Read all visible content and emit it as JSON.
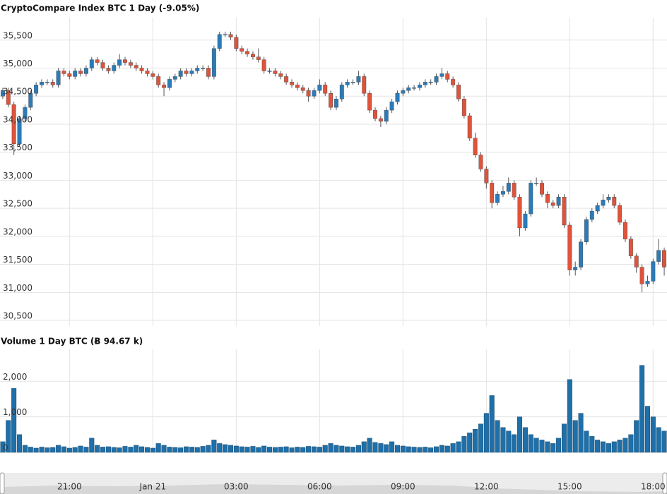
{
  "chart_data": [
    {
      "type": "candlestick",
      "title": "CryptoCompare Index BTC 1 Day (-9.05%)",
      "up_color": "#2b7bb9",
      "down_color": "#e0533b",
      "grid": true,
      "xlim": [
        -0.5,
        119.5
      ],
      "xticks": [
        {
          "value": 12,
          "label": "21:00"
        },
        {
          "value": 27,
          "label": "Jan 21"
        },
        {
          "value": 42,
          "label": "03:00"
        },
        {
          "value": 57,
          "label": "06:00"
        },
        {
          "value": 72,
          "label": "09:00"
        },
        {
          "value": 87,
          "label": "12:00"
        },
        {
          "value": 102,
          "label": "15:00"
        },
        {
          "value": 117,
          "label": "18:00"
        }
      ],
      "ylim": [
        30400,
        35900
      ],
      "yticks": [
        {
          "value": 30500,
          "label": "30,500"
        },
        {
          "value": 31000,
          "label": "31,000"
        },
        {
          "value": 31500,
          "label": "31,500"
        },
        {
          "value": 32000,
          "label": "32,000"
        },
        {
          "value": 32500,
          "label": "32,500"
        },
        {
          "value": 33000,
          "label": "33,000"
        },
        {
          "value": 33500,
          "label": "33,500"
        },
        {
          "value": 34000,
          "label": "34,000"
        },
        {
          "value": 34500,
          "label": "34,500"
        },
        {
          "value": 35000,
          "label": "35,000"
        },
        {
          "value": 35500,
          "label": "35,500"
        }
      ],
      "open": [
        34500,
        34600,
        34350,
        33650,
        34100,
        34300,
        34550,
        34700,
        34750,
        34750,
        34700,
        34950,
        34900,
        34850,
        34950,
        34900,
        35000,
        35150,
        35100,
        35000,
        34950,
        35050,
        35150,
        35100,
        35050,
        35000,
        34950,
        34900,
        34850,
        34700,
        34650,
        34800,
        34850,
        34950,
        34900,
        34950,
        35000,
        35000,
        34850,
        35350,
        35600,
        35600,
        35550,
        35350,
        35300,
        35250,
        35200,
        35150,
        34950,
        34950,
        34900,
        34850,
        34750,
        34700,
        34650,
        34600,
        34500,
        34600,
        34700,
        34550,
        34300,
        34450,
        34700,
        34750,
        34750,
        34850,
        34550,
        34250,
        34100,
        34050,
        34250,
        34400,
        34550,
        34600,
        34650,
        34650,
        34700,
        34750,
        34750,
        34850,
        34900,
        34800,
        34700,
        34450,
        34150,
        33750,
        33450,
        33200,
        32950,
        32600,
        32750,
        32800,
        32950,
        32700,
        32150,
        32400,
        32950,
        32950,
        32750,
        32600,
        32550,
        32700,
        32200,
        31400,
        31450,
        31900,
        32300,
        32450,
        32550,
        32650,
        32700,
        32550,
        32250,
        31950,
        31650,
        31450,
        31150,
        31200,
        31550,
        31750
      ],
      "high": [
        34650,
        34650,
        34400,
        34150,
        34350,
        34600,
        34750,
        34800,
        34800,
        34800,
        35000,
        35000,
        34950,
        35000,
        35000,
        35050,
        35200,
        35200,
        35150,
        35050,
        35100,
        35250,
        35200,
        35150,
        35100,
        35050,
        35000,
        34950,
        34900,
        34750,
        34850,
        34900,
        35000,
        35000,
        35000,
        35050,
        35050,
        35050,
        35400,
        35650,
        35650,
        35650,
        35600,
        35400,
        35350,
        35300,
        35350,
        35200,
        35000,
        35000,
        34950,
        34900,
        34800,
        34750,
        34700,
        34650,
        34650,
        34800,
        34750,
        34600,
        34500,
        34750,
        34800,
        34800,
        34950,
        34900,
        34600,
        34300,
        34150,
        34300,
        34450,
        34600,
        34650,
        34700,
        34700,
        34750,
        34800,
        34800,
        34900,
        35000,
        34950,
        34850,
        34750,
        34500,
        34200,
        33850,
        33500,
        33250,
        33000,
        32800,
        32900,
        33050,
        33000,
        32750,
        32450,
        33000,
        33050,
        33000,
        32800,
        32650,
        32750,
        32750,
        32250,
        31550,
        31950,
        32350,
        32500,
        32600,
        32750,
        32750,
        32750,
        32600,
        32300,
        32000,
        31700,
        31500,
        31300,
        31600,
        31950,
        31800
      ],
      "low": [
        34450,
        34300,
        33450,
        33600,
        34050,
        34250,
        34500,
        34650,
        34700,
        34650,
        34650,
        34850,
        34800,
        34800,
        34850,
        34850,
        34950,
        35050,
        34950,
        34900,
        34900,
        35000,
        35050,
        35000,
        34950,
        34900,
        34850,
        34800,
        34650,
        34500,
        34600,
        34750,
        34800,
        34850,
        34850,
        34900,
        34950,
        34800,
        34800,
        35300,
        35550,
        35500,
        35300,
        35250,
        35200,
        35150,
        35100,
        34900,
        34900,
        34850,
        34800,
        34700,
        34650,
        34600,
        34550,
        34400,
        34450,
        34550,
        34500,
        34250,
        34250,
        34400,
        34650,
        34700,
        34700,
        34500,
        34200,
        34050,
        33950,
        34000,
        34200,
        34350,
        34500,
        34550,
        34600,
        34600,
        34650,
        34700,
        34700,
        34800,
        34750,
        34650,
        34400,
        34100,
        33700,
        33400,
        33150,
        32850,
        32500,
        32550,
        32700,
        32750,
        32650,
        32000,
        32100,
        32350,
        32900,
        32700,
        32500,
        32500,
        32500,
        32150,
        31300,
        31300,
        31400,
        31850,
        32250,
        32400,
        32500,
        32600,
        32500,
        32200,
        31900,
        31600,
        31350,
        31000,
        31100,
        31150,
        31500,
        31300
      ],
      "close": [
        34600,
        34350,
        33650,
        34100,
        34300,
        34550,
        34700,
        34750,
        34750,
        34700,
        34950,
        34900,
        34850,
        34950,
        34900,
        35000,
        35150,
        35100,
        35000,
        34950,
        35050,
        35150,
        35100,
        35050,
        35000,
        34950,
        34900,
        34850,
        34700,
        34650,
        34800,
        34850,
        34950,
        34900,
        34950,
        35000,
        35000,
        34850,
        35350,
        35600,
        35600,
        35550,
        35350,
        35300,
        35250,
        35200,
        35150,
        34950,
        34950,
        34900,
        34850,
        34750,
        34700,
        34650,
        34600,
        34500,
        34600,
        34700,
        34550,
        34300,
        34450,
        34700,
        34750,
        34750,
        34850,
        34550,
        34250,
        34100,
        34050,
        34250,
        34400,
        34550,
        34600,
        34650,
        34650,
        34700,
        34750,
        34750,
        34850,
        34900,
        34800,
        34700,
        34450,
        34150,
        33750,
        33450,
        33200,
        32950,
        32600,
        32750,
        32800,
        32950,
        32700,
        32150,
        32400,
        32950,
        32950,
        32750,
        32600,
        32550,
        32700,
        32200,
        31400,
        31450,
        31900,
        32300,
        32450,
        32550,
        32650,
        32700,
        32550,
        32250,
        31950,
        31650,
        31450,
        31150,
        31200,
        31550,
        31750,
        31450
      ]
    },
    {
      "type": "bar",
      "title": "Volume 1 Day BTC (Ƀ 94.67 k)",
      "color": "#1f6fa8",
      "grid": true,
      "ylim": [
        0,
        2900
      ],
      "yticks": [
        0,
        {
          "value": 1000,
          "label": "1,000"
        },
        {
          "value": 2000,
          "label": "2,000"
        }
      ],
      "values": [
        300,
        900,
        1800,
        500,
        200,
        150,
        120,
        150,
        130,
        140,
        200,
        160,
        120,
        140,
        180,
        150,
        400,
        200,
        150,
        160,
        140,
        130,
        170,
        150,
        200,
        160,
        140,
        120,
        250,
        200,
        150,
        140,
        130,
        160,
        150,
        140,
        170,
        200,
        350,
        250,
        220,
        200,
        180,
        160,
        150,
        170,
        140,
        180,
        150,
        140,
        150,
        160,
        130,
        150,
        140,
        170,
        160,
        150,
        200,
        250,
        200,
        180,
        160,
        150,
        200,
        300,
        400,
        280,
        250,
        220,
        300,
        200,
        180,
        160,
        150,
        140,
        150,
        130,
        160,
        200,
        180,
        250,
        300,
        450,
        550,
        650,
        800,
        1100,
        1600,
        900,
        700,
        600,
        500,
        1000,
        700,
        500,
        400,
        350,
        300,
        250,
        400,
        800,
        2050,
        900,
        1100,
        600,
        450,
        350,
        300,
        250,
        300,
        350,
        400,
        500,
        900,
        2450,
        1300,
        1000,
        700,
        600
      ]
    }
  ]
}
